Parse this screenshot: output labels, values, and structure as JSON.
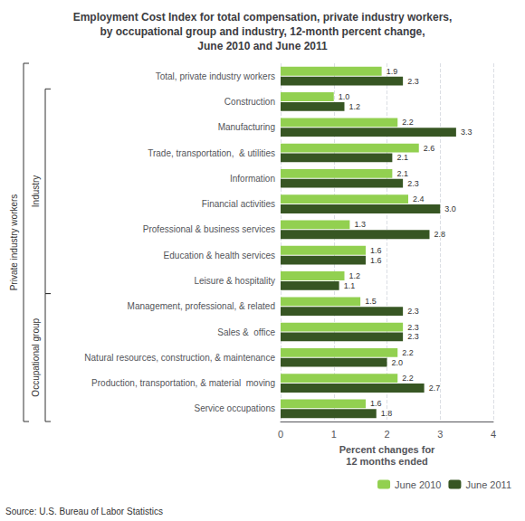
{
  "chart_data": {
    "type": "bar",
    "orientation": "horizontal",
    "title": "Employment Cost Index for total compensation, private industry workers,\nby occupational group and industry, 12-month percent change,\nJune 2010 and June 2011",
    "categories": [
      "Total, private industry workers",
      "Construction",
      "Manufacturing",
      "Trade, transportation,  & utilities",
      "Information",
      "Financial activities",
      "Professional & business services",
      "Education & health services",
      "Leisure & hospitality",
      "Management, professional, & related",
      "Sales &  office",
      "Natural resources, construction, & maintenance",
      "Production, transportation, & material  moving",
      "Service occupations"
    ],
    "series": [
      {
        "name": "June 2010",
        "color": "#92D050",
        "values": [
          1.9,
          1.0,
          2.2,
          2.6,
          2.1,
          2.4,
          1.3,
          1.6,
          1.2,
          1.5,
          2.3,
          2.2,
          2.2,
          1.6
        ],
        "value_labels": [
          "1.9",
          "1.0",
          "2.2",
          "2.6",
          "2.1",
          "2.4",
          "1.3",
          "1.6",
          "1.2",
          "1.5",
          "2.3",
          "2.2",
          "2.2",
          "1.6"
        ]
      },
      {
        "name": "June 2011",
        "color": "#375623",
        "values": [
          2.3,
          1.2,
          3.3,
          2.1,
          2.3,
          3.0,
          2.8,
          1.6,
          1.1,
          2.3,
          2.3,
          2.0,
          2.7,
          1.8
        ],
        "value_labels": [
          "2.3",
          "1.2",
          "3.3",
          "2.1",
          "2.3",
          "3.0",
          "2.8",
          "1.6",
          "1.1",
          "2.3",
          "2.3",
          "2.0",
          "2.7",
          "1.8"
        ]
      }
    ],
    "xlabel": "Percent changes for\n12 months ended",
    "xlim": [
      0,
      4
    ],
    "xticks": [
      0,
      1,
      2,
      3,
      4
    ],
    "grid": true,
    "legend": "lower right",
    "data_labels": true,
    "annotations": [
      {
        "text": "Source: U.S. Bureau of Labor Statistics"
      },
      {
        "text": "Industry",
        "from": "Construction",
        "to": "Leisure & hospitality"
      },
      {
        "text": "Occupational group",
        "from": "Management, professional, & related",
        "to": "Service occupations"
      },
      {
        "text": "Private industry workers",
        "from": "Total, private industry workers",
        "to": "Service occupations"
      }
    ]
  }
}
